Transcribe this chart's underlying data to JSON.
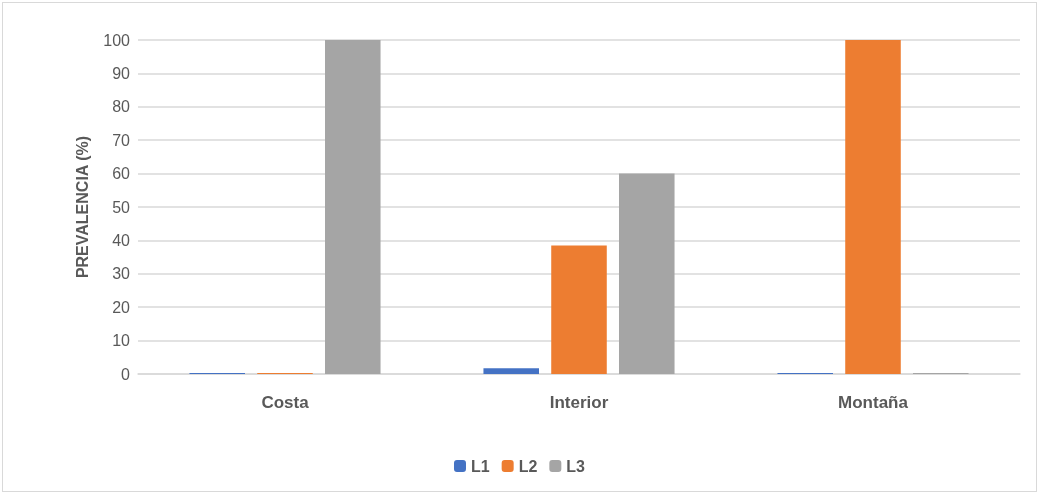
{
  "chart_data": {
    "type": "bar",
    "ylabel": "PREVALENCIA (%)",
    "categories": [
      "Costa",
      "Interior",
      "Montaña"
    ],
    "series": [
      {
        "name": "L1",
        "color": "#4472c4",
        "values": [
          0,
          1.7,
          0
        ]
      },
      {
        "name": "L2",
        "color": "#ed7d31",
        "values": [
          0,
          38.5,
          100
        ]
      },
      {
        "name": "L3",
        "color": "#a5a5a5",
        "values": [
          100,
          60,
          0
        ]
      }
    ],
    "ylim": [
      0,
      100
    ],
    "yticks": [
      0,
      10,
      20,
      30,
      40,
      50,
      60,
      70,
      80,
      90,
      100
    ],
    "grid": "y",
    "legend": "bottom"
  }
}
